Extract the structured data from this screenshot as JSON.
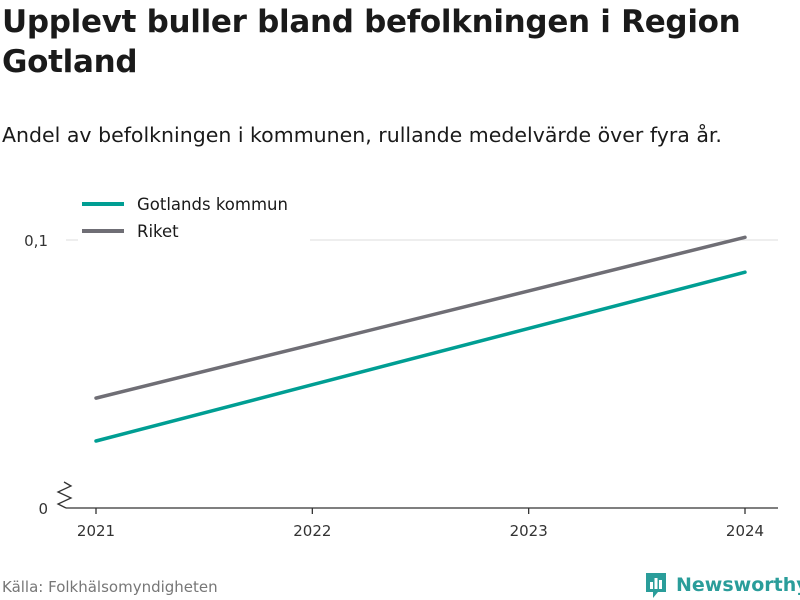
{
  "header": {
    "title": "Upplevt buller bland befolkningen i Region Gotland",
    "subtitle": "Andel av befolkningen i kommunen, rullande medelvärde över fyra år."
  },
  "footer": {
    "source": "Källa: Folkhälsomyndigheten",
    "brand": "Newsworthy",
    "brand_icon": "newsworthy-logo-icon",
    "brand_color": "#2a9d9a"
  },
  "chart_data": {
    "type": "line",
    "title": "Upplevt buller bland befolkningen i Region Gotland",
    "subtitle": "Andel av befolkningen i kommunen, rullande medelvärde över fyra år.",
    "x": [
      "2021",
      "2022",
      "2023",
      "2024"
    ],
    "y_ticks": [
      "0",
      "0,1"
    ],
    "y_tick_values": [
      0,
      0.1
    ],
    "ylim": [
      0,
      0.1
    ],
    "y_axis_break": true,
    "grid": "horizontal",
    "legend_position": "top-left",
    "series": [
      {
        "name": "Gotlands kommun",
        "color": "#009e93",
        "values": [
          0.025,
          0.046,
          0.067,
          0.088
        ]
      },
      {
        "name": "Riket",
        "color": "#6f6e75",
        "values": [
          0.041,
          0.061,
          0.081,
          0.101
        ]
      }
    ]
  }
}
